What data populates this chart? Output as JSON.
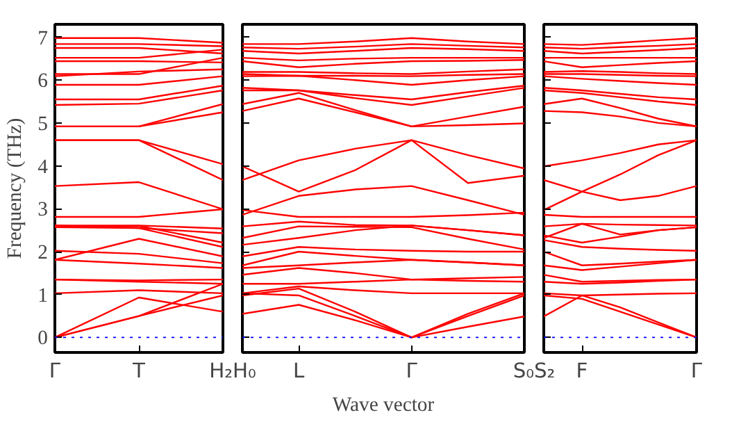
{
  "chart_data": [
    {
      "type": "line",
      "ylabel": "Frequency (THz)",
      "categories": [
        "Γ",
        "T",
        "H₂"
      ],
      "ylim": [
        -0.35,
        7.3
      ],
      "yticks": [
        0,
        1,
        2,
        3,
        4,
        5,
        6,
        7
      ],
      "ref_lines": [
        {
          "axis": "y",
          "value": 0,
          "color": "#0000ff",
          "line_style": "dotted"
        }
      ],
      "series": [
        {
          "color": "#ff0000",
          "values": [
            6.98,
            6.98,
            6.87
          ]
        },
        {
          "color": "#ff0000",
          "values": [
            6.84,
            6.84,
            6.79
          ]
        },
        {
          "color": "#ff0000",
          "values": [
            6.75,
            6.75,
            6.62
          ]
        },
        {
          "color": "#ff0000",
          "values": [
            6.52,
            6.52,
            6.71
          ]
        },
        {
          "color": "#ff0000",
          "values": [
            6.44,
            6.44,
            6.41
          ]
        },
        {
          "color": "#ff0000",
          "values": [
            6.14,
            6.14,
            6.52
          ]
        },
        {
          "color": "#ff0000",
          "values": [
            6.09,
            6.2,
            6.25
          ]
        },
        {
          "color": "#ff0000",
          "values": [
            5.89,
            5.89,
            6.09
          ]
        },
        {
          "color": "#ff0000",
          "values": [
            5.55,
            5.55,
            5.87
          ]
        },
        {
          "color": "#ff0000",
          "values": [
            5.42,
            5.45,
            5.76
          ]
        },
        {
          "color": "#ff0000",
          "values": [
            4.92,
            4.92,
            5.44
          ]
        },
        {
          "color": "#ff0000",
          "values": [
            4.92,
            4.92,
            5.25
          ]
        },
        {
          "color": "#ff0000",
          "values": [
            4.6,
            4.6,
            4.04
          ]
        },
        {
          "color": "#ff0000",
          "values": [
            4.6,
            4.6,
            3.67
          ]
        },
        {
          "color": "#ff0000",
          "values": [
            3.53,
            3.62,
            2.99
          ]
        },
        {
          "color": "#ff0000",
          "values": [
            2.81,
            2.81,
            2.99
          ]
        },
        {
          "color": "#ff0000",
          "values": [
            2.61,
            2.61,
            2.54
          ]
        },
        {
          "color": "#ff0000",
          "values": [
            2.61,
            2.55,
            2.11
          ]
        },
        {
          "color": "#ff0000",
          "values": [
            2.57,
            2.55,
            2.43
          ]
        },
        {
          "color": "#ff0000",
          "values": [
            2.57,
            2.6,
            2.21
          ]
        },
        {
          "color": "#ff0000",
          "values": [
            1.81,
            2.3,
            1.89
          ]
        },
        {
          "color": "#ff0000",
          "values": [
            2.02,
            1.95,
            1.73
          ]
        },
        {
          "color": "#ff0000",
          "values": [
            1.81,
            1.72,
            1.62
          ]
        },
        {
          "color": "#ff0000",
          "values": [
            1.35,
            1.33,
            1.35
          ]
        },
        {
          "color": "#ff0000",
          "values": [
            1.35,
            1.3,
            1.25
          ]
        },
        {
          "color": "#ff0000",
          "values": [
            1.03,
            1.1,
            1.03
          ]
        },
        {
          "color": "#ff0000",
          "values": [
            0,
            0.93,
            0.6
          ]
        },
        {
          "color": "#ff0000",
          "values": [
            0,
            0.5,
            0.98
          ]
        },
        {
          "color": "#ff0000",
          "values": [
            0,
            0.5,
            1.25
          ]
        }
      ]
    },
    {
      "type": "line",
      "xlabel": "Wave vector",
      "tick_labels": "x",
      "categories": [
        "H₀",
        "L",
        null,
        "Γ",
        null,
        "S₀"
      ],
      "ylim": [
        -0.35,
        7.3
      ],
      "yticks": [
        0,
        1,
        2,
        3,
        4,
        5,
        6,
        7
      ],
      "ref_lines": [
        {
          "axis": "y",
          "value": 0,
          "color": "#0000ff",
          "line_style": "dotted"
        }
      ],
      "series": [
        {
          "color": "#ff0000",
          "values": [
            6.84,
            6.84,
            6.9,
            6.98,
            6.9,
            6.84
          ]
        },
        {
          "color": "#ff0000",
          "values": [
            6.76,
            6.73,
            6.78,
            6.84,
            6.8,
            6.76
          ]
        },
        {
          "color": "#ff0000",
          "values": [
            6.68,
            6.62,
            6.68,
            6.75,
            6.72,
            6.68
          ]
        },
        {
          "color": "#ff0000",
          "values": [
            6.52,
            6.46,
            6.5,
            6.52,
            6.52,
            6.52
          ]
        },
        {
          "color": "#ff0000",
          "values": [
            6.44,
            6.3,
            6.38,
            6.44,
            6.45,
            6.47
          ]
        },
        {
          "color": "#ff0000",
          "values": [
            6.19,
            6.19,
            6.16,
            6.14,
            6.2,
            6.25
          ]
        },
        {
          "color": "#ff0000",
          "values": [
            6.14,
            6.1,
            6.1,
            6.09,
            6.12,
            6.14
          ]
        },
        {
          "color": "#ff0000",
          "values": [
            6.09,
            6.1,
            6.0,
            5.89,
            6.0,
            6.09
          ]
        },
        {
          "color": "#ff0000",
          "values": [
            5.82,
            5.76,
            5.65,
            5.55,
            5.72,
            5.87
          ]
        },
        {
          "color": "#ff0000",
          "values": [
            5.76,
            5.76,
            5.58,
            5.42,
            5.62,
            5.82
          ]
        },
        {
          "color": "#ff0000",
          "values": [
            5.44,
            5.7,
            5.3,
            4.92,
            5.15,
            5.38
          ]
        },
        {
          "color": "#ff0000",
          "values": [
            5.28,
            5.57,
            5.25,
            4.92,
            4.95,
            4.99
          ]
        },
        {
          "color": "#ff0000",
          "values": [
            3.99,
            3.4,
            3.9,
            4.6,
            3.6,
            3.77
          ]
        },
        {
          "color": "#ff0000",
          "values": [
            3.67,
            4.13,
            4.4,
            4.6,
            4.25,
            3.94
          ]
        },
        {
          "color": "#ff0000",
          "values": [
            2.86,
            3.3,
            3.45,
            3.53,
            3.2,
            2.86
          ]
        },
        {
          "color": "#ff0000",
          "values": [
            2.97,
            2.81,
            2.81,
            2.81,
            2.85,
            2.91
          ]
        },
        {
          "color": "#ff0000",
          "values": [
            2.59,
            2.7,
            2.62,
            2.61,
            2.5,
            2.38
          ]
        },
        {
          "color": "#ff0000",
          "values": [
            2.32,
            2.59,
            2.58,
            2.57,
            2.3,
            2.05
          ]
        },
        {
          "color": "#ff0000",
          "values": [
            2.16,
            2.32,
            2.5,
            2.61,
            2.5,
            2.38
          ]
        },
        {
          "color": "#ff0000",
          "values": [
            1.89,
            2.11,
            2.05,
            2.02,
            2.0,
            2.0
          ]
        },
        {
          "color": "#ff0000",
          "values": [
            1.68,
            2.0,
            1.9,
            1.81,
            1.75,
            1.68
          ]
        },
        {
          "color": "#ff0000",
          "values": [
            1.62,
            1.68,
            1.75,
            1.81,
            1.75,
            1.68
          ]
        },
        {
          "color": "#ff0000",
          "values": [
            1.46,
            1.62,
            1.5,
            1.35,
            1.38,
            1.41
          ]
        },
        {
          "color": "#ff0000",
          "values": [
            1.25,
            1.25,
            1.3,
            1.35,
            1.32,
            1.3
          ]
        },
        {
          "color": "#ff0000",
          "values": [
            1.03,
            1.19,
            1.1,
            1.03,
            1.03,
            1.03
          ]
        },
        {
          "color": "#ff0000",
          "values": [
            0.98,
            1.14,
            0.6,
            0,
            0.55,
            1.03
          ]
        },
        {
          "color": "#ff0000",
          "values": [
            1.03,
            0.98,
            0.5,
            0,
            0.5,
            0.98
          ]
        },
        {
          "color": "#ff0000",
          "values": [
            0.55,
            0.76,
            0.4,
            0,
            0.25,
            0.49
          ]
        }
      ]
    },
    {
      "type": "line",
      "tick_labels": "x",
      "categories": [
        "S₂",
        "F",
        null,
        null,
        "Γ"
      ],
      "ylim": [
        -0.35,
        7.3
      ],
      "yticks": [
        0,
        1,
        2,
        3,
        4,
        5,
        6,
        7
      ],
      "ref_lines": [
        {
          "axis": "y",
          "value": 0,
          "color": "#0000ff",
          "line_style": "dotted"
        }
      ],
      "series": [
        {
          "color": "#ff0000",
          "values": [
            6.84,
            6.82,
            6.87,
            6.93,
            6.98
          ]
        },
        {
          "color": "#ff0000",
          "values": [
            6.76,
            6.73,
            6.77,
            6.8,
            6.84
          ]
        },
        {
          "color": "#ff0000",
          "values": [
            6.68,
            6.62,
            6.66,
            6.7,
            6.75
          ]
        },
        {
          "color": "#ff0000",
          "values": [
            6.52,
            6.52,
            6.52,
            6.52,
            6.52
          ]
        },
        {
          "color": "#ff0000",
          "values": [
            6.44,
            6.3,
            6.35,
            6.4,
            6.44
          ]
        },
        {
          "color": "#ff0000",
          "values": [
            6.19,
            6.21,
            6.19,
            6.16,
            6.14
          ]
        },
        {
          "color": "#ff0000",
          "values": [
            6.14,
            6.14,
            6.12,
            6.1,
            6.09
          ]
        },
        {
          "color": "#ff0000",
          "values": [
            6.09,
            6.03,
            5.98,
            5.93,
            5.89
          ]
        },
        {
          "color": "#ff0000",
          "values": [
            5.82,
            5.76,
            5.68,
            5.6,
            5.55
          ]
        },
        {
          "color": "#ff0000",
          "values": [
            5.76,
            5.7,
            5.6,
            5.5,
            5.42
          ]
        },
        {
          "color": "#ff0000",
          "values": [
            5.44,
            5.57,
            5.35,
            5.1,
            4.92
          ]
        },
        {
          "color": "#ff0000",
          "values": [
            5.28,
            5.25,
            5.15,
            5.0,
            4.92
          ]
        },
        {
          "color": "#ff0000",
          "values": [
            3.99,
            4.13,
            4.3,
            4.5,
            4.6
          ]
        },
        {
          "color": "#ff0000",
          "values": [
            3.67,
            3.4,
            3.8,
            4.25,
            4.6
          ]
        },
        {
          "color": "#ff0000",
          "values": [
            2.97,
            3.4,
            3.2,
            3.3,
            3.53
          ]
        },
        {
          "color": "#ff0000",
          "values": [
            2.86,
            2.81,
            2.81,
            2.81,
            2.81
          ]
        },
        {
          "color": "#ff0000",
          "values": [
            2.59,
            2.65,
            2.63,
            2.62,
            2.61
          ]
        },
        {
          "color": "#ff0000",
          "values": [
            2.32,
            2.65,
            2.4,
            2.5,
            2.57
          ]
        },
        {
          "color": "#ff0000",
          "values": [
            2.38,
            2.21,
            2.35,
            2.5,
            2.57
          ]
        },
        {
          "color": "#ff0000",
          "values": [
            2.27,
            2.11,
            2.07,
            2.04,
            2.02
          ]
        },
        {
          "color": "#ff0000",
          "values": [
            2.0,
            1.68,
            1.72,
            1.77,
            1.81
          ]
        },
        {
          "color": "#ff0000",
          "values": [
            1.68,
            1.57,
            1.65,
            1.73,
            1.81
          ]
        },
        {
          "color": "#ff0000",
          "values": [
            1.46,
            1.3,
            1.32,
            1.34,
            1.35
          ]
        },
        {
          "color": "#ff0000",
          "values": [
            1.3,
            1.25,
            1.28,
            1.32,
            1.35
          ]
        },
        {
          "color": "#ff0000",
          "values": [
            1.03,
            0.98,
            1.0,
            1.02,
            1.03
          ]
        },
        {
          "color": "#ff0000",
          "values": [
            0.98,
            0.9,
            0.6,
            0.3,
            0
          ]
        },
        {
          "color": "#ff0000",
          "values": [
            0.49,
            0.98,
            0.7,
            0.35,
            0
          ]
        }
      ]
    }
  ]
}
